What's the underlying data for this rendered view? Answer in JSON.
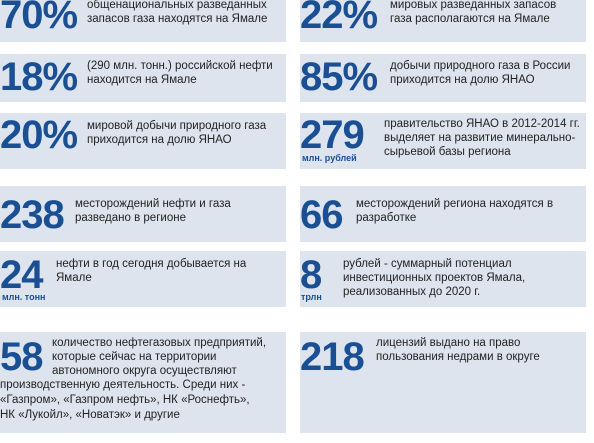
{
  "stats": [
    {
      "value": "70%",
      "unit": "",
      "lines": [
        "общенациональных разведанных",
        "запасов газа находятся на Ямале"
      ]
    },
    {
      "value": "22%",
      "unit": "",
      "lines": [
        "мировых разведанных запасов",
        "газа располагаются на Ямале"
      ]
    },
    {
      "value": "18%",
      "unit": "",
      "lines": [
        "(290 млн. тонн.) российской нефти",
        "находится на Ямале"
      ]
    },
    {
      "value": "85%",
      "unit": "",
      "lines": [
        "добычи природного газа в России",
        "приходится на долю ЯНАО"
      ]
    },
    {
      "value": "20%",
      "unit": "",
      "lines": [
        "мировой добычи природного газа",
        "приходится на долю ЯНАО"
      ]
    },
    {
      "value": "279",
      "unit": "млн. рублей",
      "lines": [
        "правительство ЯНАО в 2012-2014 гг.",
        "выделяет на развитие минерально-",
        "сырьевой базы региона"
      ]
    },
    {
      "value": "238",
      "unit": "",
      "lines": [
        "месторождений нефти и газа",
        "разведано в регионе"
      ]
    },
    {
      "value": "66",
      "unit": "",
      "lines": [
        "месторождений региона находятся в",
        "разработке"
      ]
    },
    {
      "value": "24",
      "unit": "млн. тонн",
      "lines": [
        "нефти в год сегодня добывается на",
        "Ямале"
      ]
    },
    {
      "value": "8",
      "unit": "трлн",
      "lines": [
        "рублей - суммарный потенциал",
        "инвестиционных проектов Ямала,",
        "реализованных до 2020 г."
      ]
    },
    {
      "value": "58",
      "unit": "",
      "lines": [
        "количество нефтегазовых предприятий,",
        "которые сейчас на территории",
        "автономного округа осуществляют",
        "производственную деятельность. Среди них -",
        "«Газпром», «Газпром нефть», НК «Роснефть»,",
        "НК «Лукойл», «Новатэк» и другие"
      ]
    },
    {
      "value": "218",
      "unit": "",
      "lines": [
        "лицензий выдано на право",
        "пользования недрами в округе"
      ]
    }
  ]
}
